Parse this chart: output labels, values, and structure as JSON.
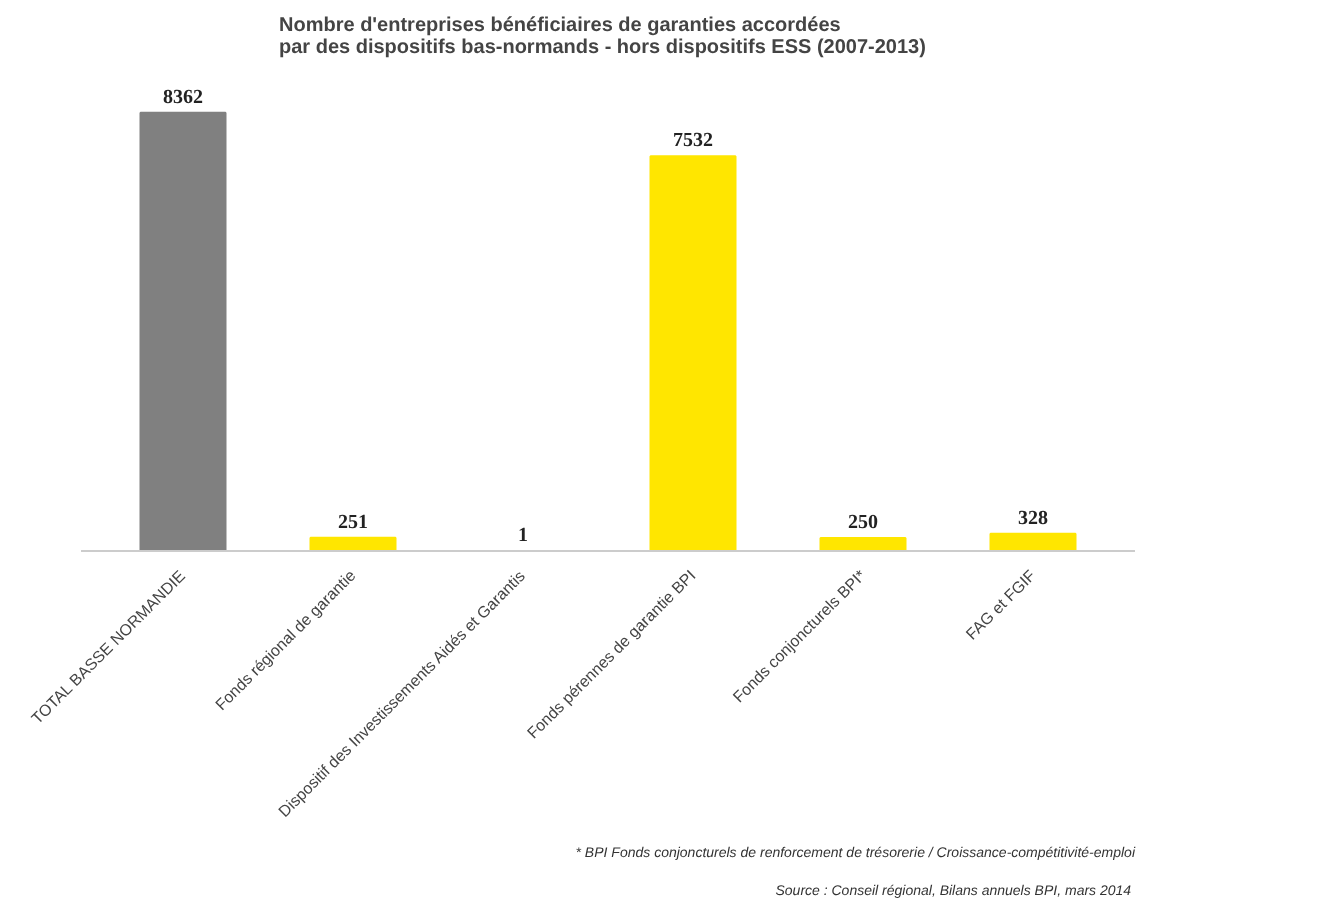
{
  "chart_data": {
    "type": "bar",
    "title": "Nombre d'entreprises bénéficiaires de garanties accordées\npar des dispositifs bas-normands  - hors dispositifs ESS  (2007-2013)",
    "categories": [
      "TOTAL BASSE NORMANDIE",
      "Fonds régional de garantie",
      "Dispositif des Investissements Aidés et Garantis",
      "Fonds pérennes de garantie BPI",
      "Fonds conjoncturels BPI*",
      "FAG et FGIF"
    ],
    "values": [
      8362,
      251,
      1,
      7532,
      250,
      328
    ],
    "colors": [
      "#808080",
      "#ffe600",
      "#ffe600",
      "#ffe600",
      "#ffe600",
      "#ffe600"
    ],
    "data_labels": true,
    "grid": false,
    "annotations": [
      "* BPI Fonds conjoncturels de renforcement de trésorerie / Croissance-compétitivité-emploi",
      "Source :  Conseil régional, Bilans annuels BPI, mars 2014"
    ]
  }
}
